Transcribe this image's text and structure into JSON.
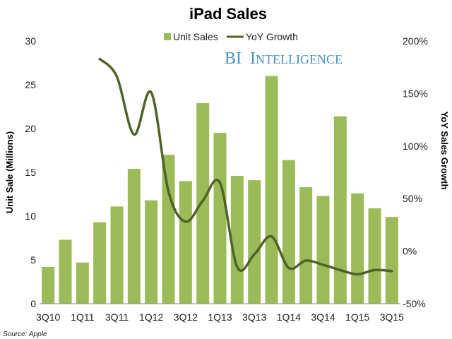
{
  "chart_data": {
    "type": "bar",
    "title": "iPad Sales",
    "categories": [
      "3Q10",
      "4Q10",
      "1Q11",
      "2Q11",
      "3Q11",
      "4Q11",
      "1Q12",
      "2Q12",
      "3Q12",
      "4Q12",
      "1Q13",
      "2Q13",
      "3Q13",
      "4Q13",
      "1Q14",
      "2Q14",
      "3Q14",
      "4Q14",
      "1Q15",
      "2Q15",
      "3Q15"
    ],
    "x_tick_labels": [
      "3Q10",
      "1Q11",
      "3Q11",
      "1Q12",
      "3Q12",
      "1Q13",
      "3Q13",
      "1Q14",
      "3Q14",
      "1Q15",
      "3Q15"
    ],
    "series": [
      {
        "name": "Unit Sales",
        "type": "bar",
        "axis": "left",
        "color": "#9bbb59",
        "values": [
          4.2,
          7.3,
          4.7,
          9.3,
          11.1,
          15.4,
          11.8,
          17.0,
          14.0,
          22.9,
          19.5,
          14.6,
          14.1,
          26.0,
          16.4,
          13.3,
          12.3,
          21.4,
          12.6,
          10.9,
          9.9
        ]
      },
      {
        "name": "YoY Growth",
        "type": "line",
        "axis": "right",
        "color": "#4f6228",
        "values": [
          null,
          null,
          null,
          183,
          166,
          111,
          151,
          57,
          28,
          48,
          65,
          -15,
          -3,
          14,
          -16,
          -9,
          -13,
          -18,
          -22,
          -18,
          -19
        ]
      }
    ],
    "ylabel": "Unit Sale (Millions)",
    "y2label": "YoY Sales Growth",
    "ylim": [
      0,
      30
    ],
    "yticks": [
      0,
      5,
      10,
      15,
      20,
      25,
      30
    ],
    "y2lim": [
      -50,
      200
    ],
    "y2ticks": [
      "-50%",
      "0%",
      "50%",
      "100%",
      "150%",
      "200%"
    ],
    "legend_placement": "top-center",
    "grid": false
  },
  "branding": {
    "name": "BI Intelligence"
  },
  "source": "Source: Apple"
}
